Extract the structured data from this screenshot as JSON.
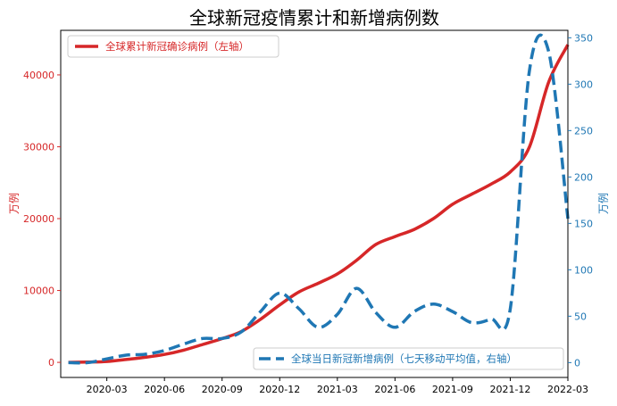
{
  "chart_data": {
    "type": "line",
    "title": "全球新冠疫情累计和新增病例数",
    "x_ticks": [
      "2020-03",
      "2020-06",
      "2020-09",
      "2020-12",
      "2021-03",
      "2021-06",
      "2021-09",
      "2021-12",
      "2022-03"
    ],
    "x": [
      "2020-01",
      "2020-02",
      "2020-03",
      "2020-04",
      "2020-05",
      "2020-06",
      "2020-07",
      "2020-08",
      "2020-09",
      "2020-10",
      "2020-11",
      "2020-12",
      "2021-01",
      "2021-02",
      "2021-03",
      "2021-04",
      "2021-05",
      "2021-06",
      "2021-07",
      "2021-08",
      "2021-09",
      "2021-10",
      "2021-11",
      "2021-12",
      "2022-01",
      "2022-02",
      "2022-03"
    ],
    "left_axis": {
      "label": "万例",
      "ylim": [
        -2100,
        46200
      ],
      "ticks": [
        0,
        10000,
        20000,
        30000,
        40000
      ],
      "color": "#d62728"
    },
    "right_axis": {
      "label": "万例",
      "ylim": [
        -16,
        358
      ],
      "ticks": [
        0,
        50,
        100,
        150,
        200,
        250,
        300,
        350
      ],
      "color": "#1f77b4"
    },
    "series": [
      {
        "name": "全球累计新冠确诊病例（左轴）",
        "axis": "left",
        "style": "solid",
        "color": "#d62728",
        "values": [
          0,
          40,
          120,
          400,
          700,
          1100,
          1700,
          2500,
          3300,
          4300,
          6000,
          8000,
          9800,
          11000,
          12300,
          14200,
          16400,
          17500,
          18500,
          20000,
          22000,
          23400,
          24800,
          26500,
          30000,
          39000,
          44200
        ]
      },
      {
        "name": "全球当日新冠新增病例（七天移动平均值，右轴）",
        "axis": "right",
        "style": "dashed",
        "color": "#1f77b4",
        "values": [
          0,
          0,
          4,
          8,
          9,
          13,
          20,
          26,
          26,
          33,
          55,
          75,
          58,
          38,
          52,
          80,
          54,
          38,
          55,
          63,
          55,
          43,
          47,
          58,
          315,
          335,
          155
        ]
      }
    ],
    "legend_positions": [
      "top-left",
      "bottom-right"
    ],
    "grid": false
  }
}
